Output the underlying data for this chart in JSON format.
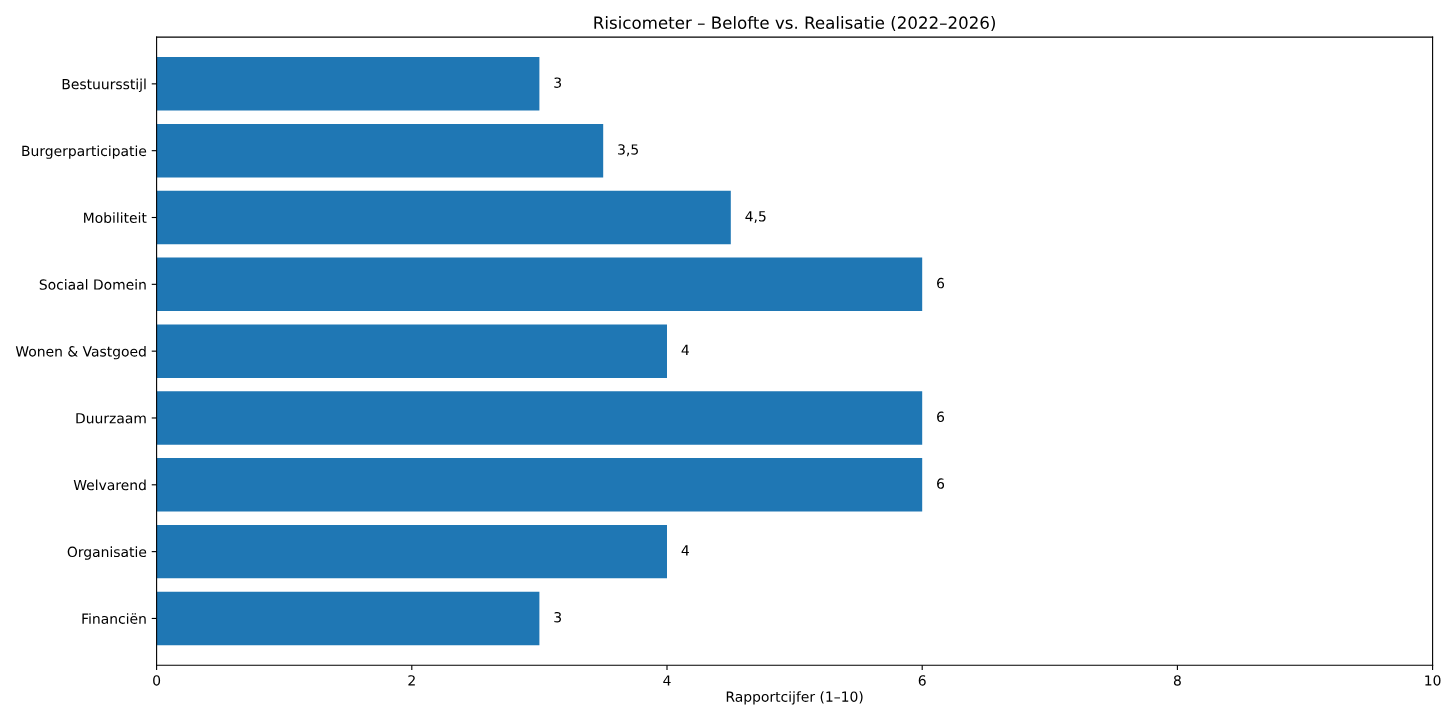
{
  "chart_data": {
    "type": "bar",
    "orientation": "horizontal",
    "title": "Risicometer – Belofte vs. Realisatie (2022–2026)",
    "xlabel": "Rapportcijfer (1–10)",
    "categories": [
      "Bestuursstijl",
      "Burgerparticipatie",
      "Mobiliteit",
      "Sociaal Domein",
      "Wonen & Vastgoed",
      "Duurzaam",
      "Welvarend",
      "Organisatie",
      "Financiën"
    ],
    "values": [
      3,
      3.5,
      4.5,
      6,
      4,
      6,
      6,
      4,
      3
    ],
    "value_labels": [
      "3",
      "3,5",
      "4,5",
      "6",
      "4",
      "6",
      "6",
      "4",
      "3"
    ],
    "color": "#1f77b4",
    "xlim": [
      0,
      10
    ],
    "xticks": [
      0,
      2,
      4,
      6,
      8,
      10
    ],
    "grid": false,
    "legend": false
  }
}
